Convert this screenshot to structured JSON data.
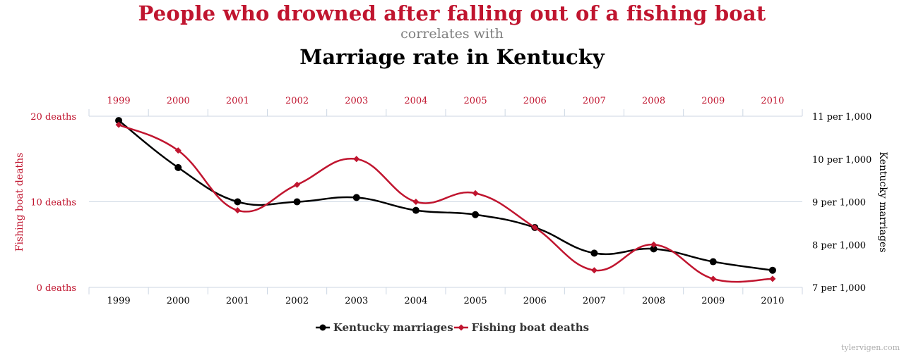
{
  "header": {
    "title": "People who drowned after falling out of a fishing boat",
    "connector": "correlates with",
    "title2": "Marriage rate in Kentucky"
  },
  "colors": {
    "fishing": "#c0152f",
    "marriages": "#000000",
    "grid": "#ccd6e3",
    "connector": "#808080"
  },
  "chart_data": {
    "type": "line",
    "title": "People who drowned after falling out of a fishing boat correlates with Marriage rate in Kentucky",
    "categories": [
      "1999",
      "2000",
      "2001",
      "2002",
      "2003",
      "2004",
      "2005",
      "2006",
      "2007",
      "2008",
      "2009",
      "2010"
    ],
    "series": [
      {
        "name": "Kentucky marriages",
        "axis": "right",
        "marker": "circle",
        "color": "#000000",
        "values": [
          10.9,
          9.8,
          9.0,
          9.0,
          9.1,
          8.8,
          8.7,
          8.4,
          7.8,
          7.9,
          7.6,
          7.4
        ]
      },
      {
        "name": "Fishing boat deaths",
        "axis": "left",
        "marker": "diamond",
        "color": "#c0152f",
        "values": [
          19,
          16,
          9,
          12,
          15,
          10,
          11,
          7,
          2,
          5,
          1,
          1
        ]
      }
    ],
    "left_axis": {
      "label": "Fishing boat deaths",
      "range": [
        0,
        20
      ],
      "ticks": [
        {
          "value": 20,
          "label": "20 deaths"
        },
        {
          "value": 10,
          "label": "10 deaths"
        },
        {
          "value": 0,
          "label": "0 deaths"
        }
      ]
    },
    "right_axis": {
      "label": "Kentucky marriages",
      "range": [
        7,
        11
      ],
      "ticks": [
        {
          "value": 11,
          "label": "11 per 1,000"
        },
        {
          "value": 10,
          "label": "10 per 1,000"
        },
        {
          "value": 9,
          "label": "9 per 1,000"
        },
        {
          "value": 8,
          "label": "8 per 1,000"
        },
        {
          "value": 7,
          "label": "7 per 1,000"
        }
      ]
    },
    "grid": true,
    "legend_position": "bottom-center"
  },
  "legend": {
    "items": [
      {
        "label": "Kentucky marriages"
      },
      {
        "label": "Fishing boat deaths"
      }
    ]
  },
  "credit": "tylervigen.com"
}
